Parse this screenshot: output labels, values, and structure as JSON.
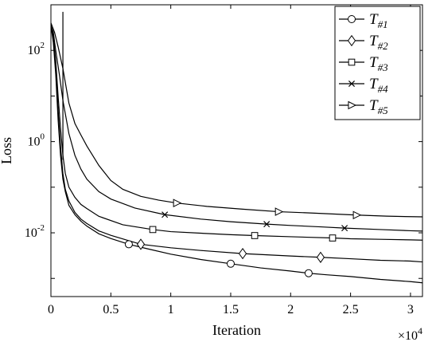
{
  "chart_data": {
    "type": "line",
    "xlabel": "Iteration",
    "ylabel": "Loss",
    "x_multiplier_label": "×10",
    "x_multiplier_exponent": "4",
    "y_scale": "log",
    "xlim": [
      0,
      31000
    ],
    "ylim": [
      0.0004,
      1000
    ],
    "x_ticks": [
      0,
      5000,
      10000,
      15000,
      20000,
      25000,
      30000
    ],
    "x_tick_labels": [
      "0",
      "0.5",
      "1",
      "1.5",
      "2",
      "2.5",
      "3"
    ],
    "y_ticks": [
      0.01,
      1,
      100
    ],
    "y_tick_labels": [
      {
        "base": "10",
        "exp": "-2"
      },
      {
        "base": "10",
        "exp": "0"
      },
      {
        "base": "10",
        "exp": "2"
      }
    ],
    "grid": false,
    "legend_placement": "top-right",
    "series": [
      {
        "name_main": "T",
        "name_sub": "#1",
        "marker": "circle",
        "x": [
          0,
          200,
          400,
          600,
          800,
          1000,
          1200,
          1500,
          2000,
          2500,
          3000,
          4000,
          5000,
          6500,
          8000,
          10000,
          12500,
          15000,
          17500,
          20000,
          21500,
          23000,
          25000,
          27500,
          30000,
          31000
        ],
        "y": [
          350,
          150,
          30,
          3,
          0.5,
          0.15,
          0.08,
          0.04,
          0.025,
          0.018,
          0.014,
          0.0095,
          0.0075,
          0.0056,
          0.0045,
          0.0034,
          0.0026,
          0.0021,
          0.0017,
          0.00145,
          0.0013,
          0.0012,
          0.0011,
          0.00095,
          0.00085,
          0.0008
        ],
        "marker_x": [
          6500,
          15000,
          21500
        ]
      },
      {
        "name_main": "T",
        "name_sub": "#2",
        "marker": "diamond",
        "x": [
          0,
          200,
          400,
          600,
          800,
          1000,
          1200,
          1500,
          2000,
          2500,
          3000,
          4000,
          5000,
          7500,
          10000,
          12500,
          16000,
          20000,
          22500,
          25000,
          27500,
          30000,
          31000
        ],
        "y": [
          350,
          180,
          40,
          5,
          0.8,
          0.2,
          0.09,
          0.05,
          0.028,
          0.02,
          0.016,
          0.011,
          0.0088,
          0.0056,
          0.0047,
          0.0041,
          0.0035,
          0.0031,
          0.0029,
          0.0027,
          0.0025,
          0.0024,
          0.0023
        ],
        "marker_x": [
          7500,
          16000,
          22500
        ]
      },
      {
        "name_main": "T",
        "name_sub": "#3",
        "marker": "square",
        "x": [
          0,
          200,
          400,
          600,
          800,
          1000,
          1200,
          1500,
          2000,
          2500,
          3000,
          4000,
          6000,
          8500,
          10000,
          12500,
          15000,
          17000,
          20000,
          23500,
          25000,
          27500,
          30000,
          31000
        ],
        "y": [
          350,
          200,
          60,
          10,
          2,
          0.5,
          0.2,
          0.1,
          0.06,
          0.042,
          0.034,
          0.023,
          0.015,
          0.0118,
          0.0106,
          0.0098,
          0.0091,
          0.0087,
          0.0082,
          0.0077,
          0.0074,
          0.0072,
          0.007,
          0.0069
        ],
        "marker_x": [
          8500,
          17000,
          23500
        ]
      },
      {
        "name_main": "T",
        "name_sub": "#4",
        "marker": "x",
        "x": [
          0,
          200,
          400,
          700,
          1000,
          1500,
          2000,
          2500,
          3000,
          4000,
          5000,
          7000,
          9500,
          12500,
          15000,
          18000,
          20000,
          22500,
          24500,
          27500,
          30000,
          31000
        ],
        "y": [
          350,
          250,
          100,
          30,
          8,
          1.5,
          0.5,
          0.25,
          0.15,
          0.08,
          0.055,
          0.035,
          0.025,
          0.02,
          0.0175,
          0.0155,
          0.0145,
          0.0135,
          0.0127,
          0.0118,
          0.0111,
          0.0109
        ],
        "marker_x": [
          9500,
          18000,
          24500
        ]
      },
      {
        "name_main": "T",
        "name_sub": "#5",
        "marker": "triangle-right",
        "x": [
          0,
          300,
          600,
          1000,
          1500,
          2000,
          2500,
          3000,
          4000,
          5000,
          6000,
          7500,
          9000,
          10500,
          13000,
          16000,
          19000,
          22000,
          25500,
          28000,
          30000,
          31000
        ],
        "y": [
          400,
          250,
          120,
          40,
          7,
          2.5,
          1.4,
          0.8,
          0.3,
          0.14,
          0.09,
          0.063,
          0.052,
          0.045,
          0.038,
          0.033,
          0.029,
          0.027,
          0.0245,
          0.0232,
          0.0226,
          0.0224
        ],
        "marker_x": [
          10500,
          19000,
          25500
        ]
      }
    ],
    "spike": {
      "x": 1000,
      "y_from": 0.4,
      "y_to": 700
    }
  }
}
